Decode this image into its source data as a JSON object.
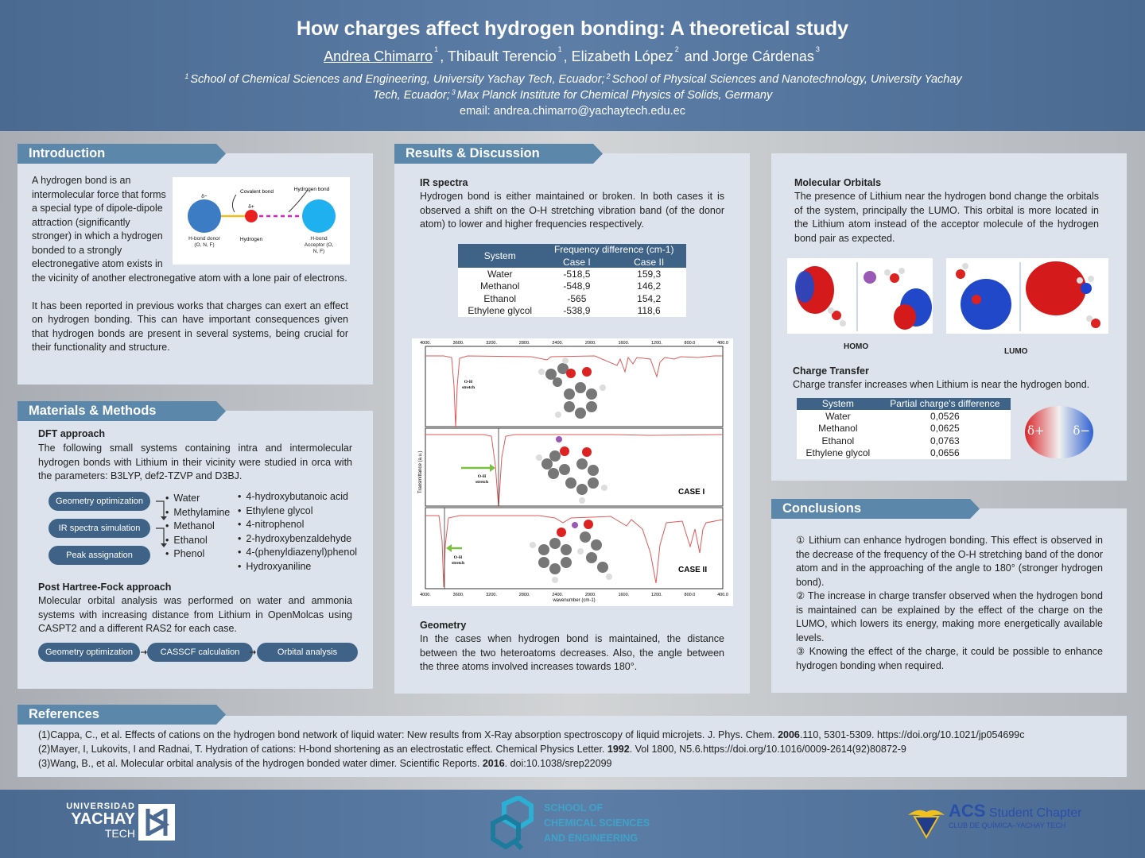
{
  "header": {
    "title": "How charges affect hydrogen bonding: A theoretical study",
    "author1": "Andrea Chimarro",
    "sup1": "1",
    "author2": ", Thibault Terencio",
    "sup2": "1",
    "author3": ", Elizabeth López",
    "sup3": "2",
    "author4": " and Jorge Cárdenas",
    "sup4": "3",
    "affil1_sup": "1",
    "affil1": "School of Chemical Sciences and Engineering, University Yachay Tech, Ecuador;",
    "affil2_sup": "2",
    "affil2": "School of Physical Sciences and Nanotechnology, University Yachay Tech, Ecuador;",
    "affil3_sup": "3",
    "affil3": "Max Planck Institute for Chemical Physics of Solids, Germany",
    "email": "email: andrea.chimarro@yachaytech.edu.ec"
  },
  "introduction": {
    "heading": "Introduction",
    "p1": "A hydrogen bond is an intermolecular force that forms a special type of dipole-dipole attraction (significantly stronger) in which a hydrogen bonded to a strongly electronegative atom exists in the vicinity of another electronegative atom with a lone pair of electrons.",
    "p2": "It has been reported in previous works that charges can exert an effect on hydrogen bonding. This can have important consequences given that hydrogen bonds are present in several systems, being crucial for their functionality and structure.",
    "diagram": {
      "covalent": "Covalent bond",
      "hbond": "Hydrogen bond",
      "delta_minus": "δ−",
      "delta_plus": "δ+",
      "donor": "H-bond donor (O, N, F)",
      "hydrogen": "Hydrogen",
      "acceptor": "H-bond Acceptor (O, N, F)"
    }
  },
  "methods": {
    "heading": "Materials & Methods",
    "dft_title": "DFT approach",
    "dft_text": "The following small systems containing intra and intermolecular hydrogen bonds with Lithium in their vicinity were studied in orca with the parameters: B3LYP, def2-TZVP and D3BJ.",
    "flow1": [
      "Geometry optimization",
      "IR spectra simulation",
      "Peak assignation"
    ],
    "list1": [
      "Water",
      "Methylamine",
      "Methanol",
      "Ethanol",
      "Phenol"
    ],
    "list2": [
      "4-hydroxybutanoic acid",
      "Ethylene glycol",
      "4-nitrophenol",
      "2-hydroxybenzaldehyde",
      "4-(phenyldiazenyl)phenol",
      "Hydroxyaniline"
    ],
    "hf_title": "Post Hartree-Fock approach",
    "hf_text": "Molecular orbital analysis was performed on water and ammonia systems with increasing distance from Lithium in OpenMolcas using CASPT2 and a different RAS2 for each case.",
    "flow2": [
      "Geometry optimization",
      "CASSCF calculation",
      "Orbital analysis"
    ]
  },
  "results": {
    "heading": "Results & Discussion",
    "ir_title": "IR spectra",
    "ir_text": "Hydrogen bond is either maintained or broken. In both cases it is observed a shift on the O-H stretching vibration band (of the donor atom) to lower and higher frequencies respectively.",
    "table": {
      "col_system": "System",
      "col_freq": "Frequency difference (cm-1)",
      "col_case1": "Case I",
      "col_case2": "Case II",
      "rows": [
        [
          "Water",
          "-518,5",
          "159,3"
        ],
        [
          "Methanol",
          "-548,9",
          "146,2"
        ],
        [
          "Ethanol",
          "-565",
          "154,2"
        ],
        [
          "Ethylene glycol",
          "-538,9",
          "118,6"
        ]
      ]
    },
    "spectra": {
      "ticks": [
        "4000.",
        "3600.",
        "3200.",
        "2800.",
        "2400.",
        "2000.",
        "1600.",
        "1200.",
        "800.0",
        "400.0"
      ],
      "ylabel": "Transmittance (a.u.)",
      "xlabel": "wavenumber (cm-1)",
      "oh": "O-H",
      "stretch": "stretch",
      "case1": "CASE I",
      "case2": "CASE II"
    },
    "geom_title": "Geometry",
    "geom_text": "In the cases when hydrogen bond is maintained, the distance between the two heteroatoms decreases. Also, the angle between the three atoms involved increases towards 180°."
  },
  "orbitals": {
    "mo_title": "Molecular Orbitals",
    "mo_text": "The presence of Lithium near the hydrogen bond change the orbitals of the system, principally the LUMO. This orbital is more located in the Lithium atom instead of the acceptor molecule of the hydrogen bond pair as expected.",
    "homo": "HOMO",
    "lumo": "LUMO",
    "ct_title": "Charge Transfer",
    "ct_text": "Charge transfer increases when Lithium is near the hydrogen bond.",
    "ct_table": {
      "col_system": "System",
      "col_diff": "Partial charge's difference",
      "rows": [
        [
          "Water",
          "0,0526"
        ],
        [
          "Methanol",
          "0,0625"
        ],
        [
          "Ethanol",
          "0,0763"
        ],
        [
          "Ethylene glycol",
          "0,0656"
        ]
      ]
    },
    "dplus": "δ+",
    "dminus": "δ−"
  },
  "conclusions": {
    "heading": "Conclusions",
    "c1": "① Lithium can enhance hydrogen bonding. This effect is observed in the decrease of the frequency of the O-H stretching band of the donor atom and in the approaching of the angle to 180° (stronger hydrogen bond).",
    "c2": "② The increase in charge transfer observed when the hydrogen bond is maintained can be explained by the effect of the charge on the LUMO, which lowers its energy, making more energetically available levels.",
    "c3": "③ Knowing the effect of the charge, it could be possible to enhance hydrogen bonding when required."
  },
  "references": {
    "heading": "References",
    "items": [
      {
        "pre": "(1)Cappa, C., et al. Effects of cations on the hydrogen bond network of liquid water: New results from X-Ray absorption spectroscopy of liquid microjets. J. Phys. Chem. ",
        "year": "2006",
        "post": ".110, 5301-5309. https://doi.org/10.1021/jp054699c"
      },
      {
        "pre": "(2)Mayer, I, Lukovits, I and Radnai, T. Hydration of cations: H-bond shortening as an electrostatic effect. Chemical Physics Letter. ",
        "year": "1992",
        "post": ". Vol 1800, N5.6.https://doi.org/10.1016/0009-2614(92)80872-9"
      },
      {
        "pre": "(3)Wang, B., et al. Molecular orbital analysis of the hydrogen bonded water dimer. Scientific Reports. ",
        "year": "2016",
        "post": ".  doi:10.1038/srep22099"
      }
    ]
  },
  "footer": {
    "uni1": "UNIVERSIDAD",
    "uni2": "YACHAY",
    "uni3": "TECH",
    "school1": "SCHOOL OF",
    "school2": "CHEMICAL SCIENCES",
    "school3": "AND ENGINEERING",
    "acs": "ACS",
    "acs_sub": "Student Chapter",
    "acs_club": "CLUB DE QUÍMICA–YACHAY TECH"
  },
  "colors": {
    "accent": "#3e6386",
    "tab": "#5a87aa",
    "spectrum": "#e05a5a"
  }
}
